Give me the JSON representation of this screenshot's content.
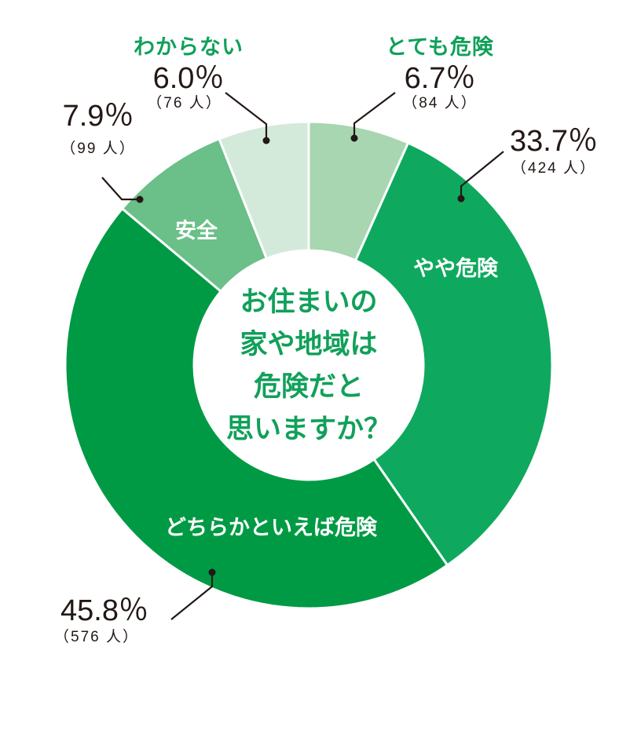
{
  "chart_data": {
    "type": "pie",
    "variant": "donut",
    "title": "お住まいの家や地域は危険だと思いますか？",
    "categories": [
      "とても危険",
      "やや危険",
      "どちらかといえば危険",
      "安全",
      "わからない"
    ],
    "values": [
      6.7,
      33.7,
      45.8,
      7.9,
      6.0
    ],
    "counts": [
      84,
      424,
      576,
      99,
      76
    ],
    "unit": "%",
    "count_unit": "人",
    "start_angle": "12 o'clock",
    "direction": "clockwise",
    "colors": [
      "#a7d6b0",
      "#0ea95e",
      "#009a44",
      "#6bbf88",
      "#d3eadb"
    ]
  },
  "center": {
    "lines": [
      "お住まいの",
      "家や地域は",
      "危険だと",
      "思いますか？"
    ]
  },
  "labels": {
    "totemo": {
      "category": "とても危険",
      "pct": "6.7％",
      "count": "（84 人）"
    },
    "yaya": {
      "category": "やや危険",
      "pct": "33.7％",
      "count": "（424 人）"
    },
    "dochira": {
      "category": "どちらかといえば危険",
      "pct": "45.8％",
      "count": "（576 人）"
    },
    "anzen": {
      "category": "安全",
      "pct": "7.9％",
      "count": "（99 人）"
    },
    "wakaranai": {
      "category": "わからない",
      "pct": "6.0％",
      "count": "（76 人）"
    }
  },
  "colors": {
    "accent_text": "#11a05a",
    "label_text": "#231815",
    "separator": "#ffffff"
  }
}
